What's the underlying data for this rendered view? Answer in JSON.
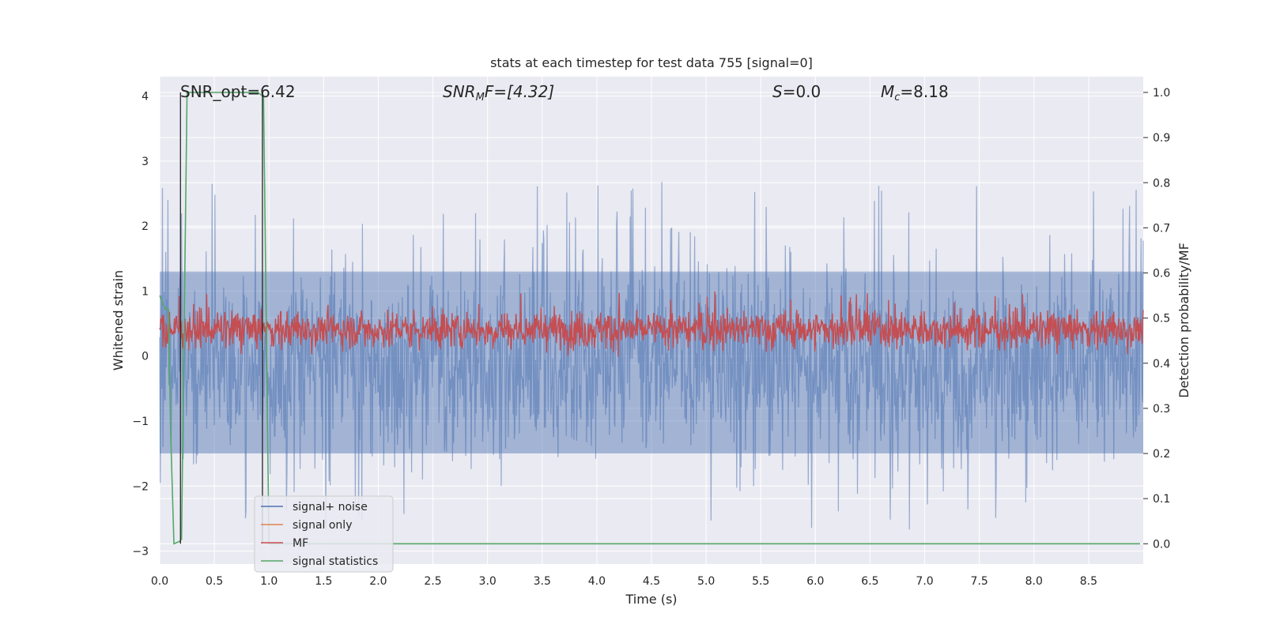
{
  "chart_data": {
    "type": "line",
    "title": "stats at each timestep for test data 755 [signal=0]",
    "xlabel": "Time (s)",
    "ylabel": "Whitened strain",
    "y2label": "Detection probability/MF",
    "xlim": [
      0.0,
      9.0
    ],
    "ylim": [
      -3.2,
      4.3
    ],
    "y2lim": [
      -0.045,
      1.035
    ],
    "x_ticks": [
      "0.0",
      "0.5",
      "1.0",
      "1.5",
      "2.0",
      "2.5",
      "3.0",
      "3.5",
      "4.0",
      "4.5",
      "5.0",
      "5.5",
      "6.0",
      "6.5",
      "7.0",
      "7.5",
      "8.0",
      "8.5"
    ],
    "x_tick_values": [
      0.0,
      0.5,
      1.0,
      1.5,
      2.0,
      2.5,
      3.0,
      3.5,
      4.0,
      4.5,
      5.0,
      5.5,
      6.0,
      6.5,
      7.0,
      7.5,
      8.0,
      8.5
    ],
    "y_ticks": [
      "4",
      "3",
      "2",
      "1",
      "0",
      "−1",
      "−2",
      "−3"
    ],
    "y_tick_values": [
      4,
      3,
      2,
      1,
      0,
      -1,
      -2,
      -3
    ],
    "y2_ticks": [
      "1.0",
      "0.9",
      "0.8",
      "0.7",
      "0.6",
      "0.5",
      "0.4",
      "0.3",
      "0.2",
      "0.1",
      "0.0"
    ],
    "y2_tick_values": [
      1.0,
      0.9,
      0.8,
      0.7,
      0.6,
      0.5,
      0.4,
      0.3,
      0.2,
      0.1,
      0.0
    ],
    "grid": true,
    "annotations": {
      "snr_opt": "SNR_opt=6.42",
      "snr_mf_sym": "SNR",
      "snr_mf_sub": "M",
      "snr_mf_rest": "F=[4.32]",
      "s_sym": "S",
      "s_rest": "=0.0",
      "mc_sym": "M",
      "mc_sub": "c",
      "mc_rest": "=8.18"
    },
    "legend": {
      "placement": "lower-left",
      "entries": [
        "signal+ noise",
        "signal only",
        "MF",
        "signal statistics"
      ]
    },
    "series": [
      {
        "name": "signal+ noise",
        "color": "#4c72b0",
        "axis": "left",
        "envelope": {
          "x_start": 0.0,
          "x_end": 9.0,
          "typical_range": [
            -1.5,
            1.3
          ],
          "max": 4.0,
          "min": -2.8
        }
      },
      {
        "name": "signal only",
        "color": "#dd8452",
        "axis": "left",
        "values": []
      },
      {
        "name": "MF",
        "color": "#c44e52",
        "axis": "right",
        "envelope": {
          "x_start": 0.0,
          "x_end": 9.0,
          "typical_range": [
            0.42,
            0.53
          ],
          "max": 0.56
        }
      },
      {
        "name": "signal statistics",
        "color": "#55a868",
        "axis": "right",
        "x": [
          0.0,
          0.05,
          0.08,
          0.1,
          0.13,
          0.18,
          0.2,
          0.25,
          0.3,
          0.5,
          0.7,
          0.9,
          0.95,
          1.0,
          1.2,
          3.0,
          6.0,
          8.97
        ],
        "values": [
          0.55,
          0.52,
          0.52,
          0.25,
          0.0,
          0.005,
          0.01,
          1.0,
          1.0,
          1.0,
          1.0,
          1.0,
          0.99,
          0.0,
          0.0,
          0.0,
          0.0,
          0.0
        ]
      }
    ],
    "markers": [
      {
        "x": 0.19,
        "y_range": [
          0.0,
          1.0
        ],
        "color": "#262626"
      },
      {
        "x": 0.94,
        "y_range": [
          0.0,
          1.0
        ],
        "color": "#262626"
      }
    ]
  }
}
